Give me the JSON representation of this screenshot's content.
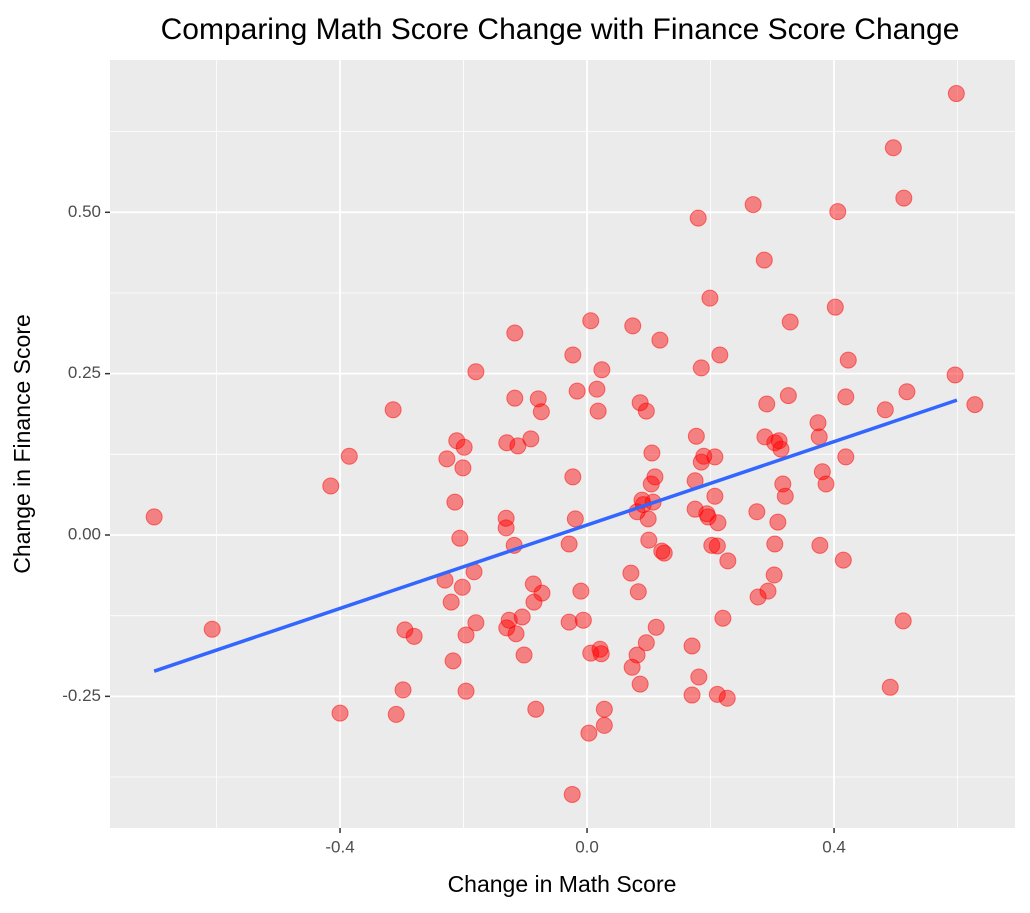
{
  "chart_data": {
    "type": "scatter",
    "title": "Comparing Math Score Change with Finance Score Change",
    "x_label": "Change in Math Score",
    "y_label": "Change in Finance Score",
    "xlim": [
      -0.7725,
      0.693
    ],
    "ylim": [
      -0.454,
      0.736
    ],
    "xticks": [
      {
        "value": -0.4,
        "label": "-0.4"
      },
      {
        "value": 0,
        "label": "0.0"
      },
      {
        "value": 0.4,
        "label": "0.4"
      }
    ],
    "yticks": [
      {
        "value": -0.25,
        "label": "-0.25"
      },
      {
        "value": 0,
        "label": "0.00"
      },
      {
        "value": 0.25,
        "label": "0.25"
      },
      {
        "value": 0.5,
        "label": "0.50"
      }
    ],
    "grid": true,
    "series": [
      {
        "color": "#ff0000",
        "x": [
          -0.701,
          -0.607,
          -0.415,
          -0.4,
          -0.385,
          -0.314,
          -0.309,
          -0.298,
          -0.295,
          -0.28,
          -0.23,
          -0.227,
          -0.22,
          -0.217,
          -0.214,
          -0.211,
          -0.206,
          -0.202,
          -0.201,
          -0.199,
          -0.196,
          -0.196,
          -0.183,
          -0.18,
          -0.18,
          -0.131,
          -0.131,
          -0.13,
          -0.13,
          -0.126,
          -0.117,
          -0.117,
          -0.118,
          -0.115,
          -0.112,
          -0.105,
          -0.102,
          -0.091,
          -0.087,
          -0.086,
          -0.083,
          -0.079,
          -0.074,
          -0.073,
          -0.029,
          -0.029,
          -0.023,
          -0.024,
          -0.023,
          -0.019,
          -0.016,
          -0.01,
          -0.006,
          0.003,
          0.006,
          0.006,
          0.016,
          0.018,
          0.021,
          0.023,
          0.024,
          0.028,
          0.028,
          0.071,
          0.073,
          0.074,
          0.081,
          0.081,
          0.083,
          0.086,
          0.086,
          0.089,
          0.091,
          0.096,
          0.096,
          0.099,
          0.1,
          0.104,
          0.105,
          0.107,
          0.11,
          0.112,
          0.118,
          0.121,
          0.125,
          0.17,
          0.17,
          0.175,
          0.175,
          0.177,
          0.18,
          0.181,
          0.185,
          0.185,
          0.189,
          0.194,
          0.196,
          0.199,
          0.202,
          0.207,
          0.207,
          0.211,
          0.211,
          0.212,
          0.215,
          0.22,
          0.227,
          0.228,
          0.269,
          0.275,
          0.277,
          0.287,
          0.288,
          0.291,
          0.293,
          0.303,
          0.304,
          0.304,
          0.309,
          0.311,
          0.314,
          0.317,
          0.321,
          0.326,
          0.329,
          0.374,
          0.376,
          0.377,
          0.381,
          0.387,
          0.402,
          0.406,
          0.415,
          0.419,
          0.419,
          0.423,
          0.483,
          0.491,
          0.496,
          0.513,
          0.512,
          0.518,
          0.596,
          0.598,
          0.628
        ],
        "values": [
          0.028,
          -0.146,
          0.076,
          -0.276,
          0.122,
          0.194,
          -0.278,
          -0.24,
          -0.147,
          -0.157,
          -0.07,
          0.118,
          -0.104,
          -0.195,
          0.051,
          0.146,
          -0.005,
          -0.081,
          0.104,
          0.136,
          -0.155,
          -0.242,
          -0.057,
          -0.136,
          0.253,
          0.011,
          0.026,
          0.143,
          -0.144,
          -0.132,
          0.313,
          0.212,
          -0.016,
          -0.153,
          0.138,
          -0.127,
          -0.186,
          0.149,
          -0.076,
          -0.104,
          -0.27,
          0.211,
          0.191,
          -0.09,
          -0.014,
          -0.135,
          0.279,
          -0.402,
          0.09,
          0.025,
          0.223,
          -0.087,
          -0.132,
          -0.307,
          -0.183,
          0.332,
          0.226,
          0.192,
          -0.177,
          -0.184,
          0.256,
          -0.27,
          -0.295,
          -0.059,
          -0.205,
          0.324,
          0.036,
          -0.186,
          -0.088,
          0.205,
          -0.231,
          0.054,
          0.047,
          0.192,
          -0.167,
          0.025,
          -0.008,
          0.079,
          0.127,
          0.051,
          0.09,
          -0.143,
          0.302,
          -0.025,
          -0.028,
          -0.248,
          -0.172,
          0.084,
          0.04,
          0.153,
          0.491,
          -0.22,
          0.259,
          0.113,
          0.122,
          0.033,
          0.028,
          0.367,
          -0.016,
          0.06,
          0.121,
          -0.017,
          -0.247,
          0.019,
          0.279,
          -0.129,
          -0.253,
          -0.04,
          0.512,
          0.036,
          -0.096,
          0.426,
          0.152,
          0.203,
          -0.087,
          -0.062,
          -0.014,
          0.143,
          0.02,
          0.146,
          0.133,
          0.079,
          0.06,
          0.216,
          0.33,
          0.174,
          0.152,
          -0.016,
          0.098,
          0.079,
          0.353,
          0.501,
          -0.039,
          0.214,
          0.121,
          0.271,
          0.194,
          -0.236,
          0.6,
          0.522,
          -0.133,
          0.222,
          0.248,
          0.684,
          0.202
        ]
      }
    ],
    "trend": {
      "color": "#3366ff",
      "x": [
        -0.701,
        0.599
      ],
      "values": [
        -0.211,
        0.209
      ]
    }
  }
}
